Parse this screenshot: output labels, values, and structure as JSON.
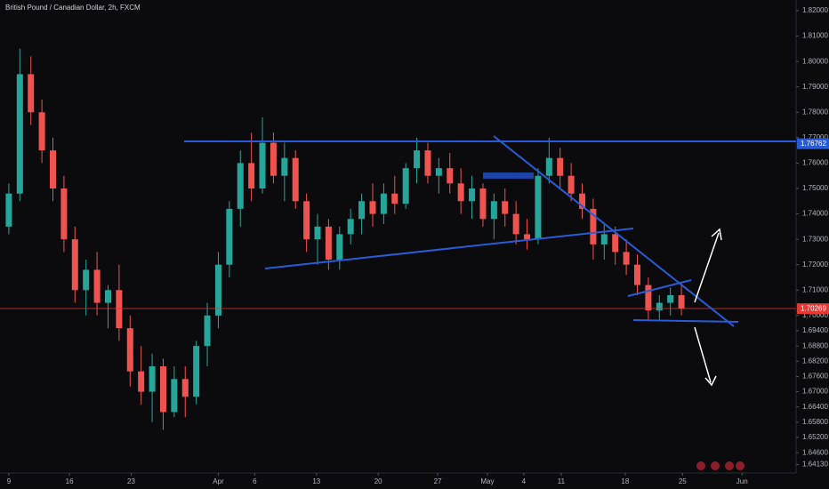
{
  "chart_data": {
    "type": "candlestick",
    "title": "British Pound / Canadian Dollar, 2h, FXCM",
    "up_color": "#26a69a",
    "down_color": "#ef5350",
    "xlim": [
      -0.8,
      71.4
    ],
    "xticks": [
      {
        "value": 0,
        "label": "9"
      },
      {
        "value": 5.5,
        "label": "16"
      },
      {
        "value": 11.1,
        "label": "23"
      },
      {
        "value": 19.0,
        "label": "Apr"
      },
      {
        "value": 22.3,
        "label": "6"
      },
      {
        "value": 27.9,
        "label": "13"
      },
      {
        "value": 33.5,
        "label": "20"
      },
      {
        "value": 38.9,
        "label": "27"
      },
      {
        "value": 43.4,
        "label": "May"
      },
      {
        "value": 46.7,
        "label": "4"
      },
      {
        "value": 50.1,
        "label": "11"
      },
      {
        "value": 55.9,
        "label": "18"
      },
      {
        "value": 61.1,
        "label": "25"
      },
      {
        "value": 66.5,
        "label": "Jun"
      }
    ],
    "ylim": [
      1.638,
      1.8242
    ],
    "yticks": [
      {
        "value": 1.82,
        "label": "1.82000"
      },
      {
        "value": 1.81,
        "label": "1.81000"
      },
      {
        "value": 1.8,
        "label": "1.80000"
      },
      {
        "value": 1.79,
        "label": "1.79000"
      },
      {
        "value": 1.78,
        "label": "1.78000"
      },
      {
        "value": 1.77,
        "label": "1.77000"
      },
      {
        "value": 1.76,
        "label": "1.76000"
      },
      {
        "value": 1.75,
        "label": "1.75000"
      },
      {
        "value": 1.74,
        "label": "1.74000"
      },
      {
        "value": 1.73,
        "label": "1.73000"
      },
      {
        "value": 1.72,
        "label": "1.72000"
      },
      {
        "value": 1.71,
        "label": "1.71000"
      },
      {
        "value": 1.7,
        "label": "1.70000"
      },
      {
        "value": 1.694,
        "label": "1.69400"
      },
      {
        "value": 1.688,
        "label": "1.68800"
      },
      {
        "value": 1.682,
        "label": "1.68200"
      },
      {
        "value": 1.676,
        "label": "1.67600"
      },
      {
        "value": 1.67,
        "label": "1.67000"
      },
      {
        "value": 1.664,
        "label": "1.66400"
      },
      {
        "value": 1.658,
        "label": "1.65800"
      },
      {
        "value": 1.652,
        "label": "1.65200"
      },
      {
        "value": 1.646,
        "label": "1.64600"
      },
      {
        "value": 1.6413,
        "label": "1.64130"
      }
    ],
    "price_labels": [
      {
        "value": 1.76762,
        "label": "1.76762",
        "color": "#2a5bd7"
      },
      {
        "value": 1.70269,
        "label": "1.70269",
        "color": "#e53935"
      }
    ],
    "open": [
      1.735,
      1.748,
      1.795,
      1.78,
      1.765,
      1.75,
      1.73,
      1.71,
      1.718,
      1.705,
      1.71,
      1.695,
      1.678,
      1.67,
      1.68,
      1.662,
      1.675,
      1.668,
      1.688,
      1.7,
      1.72,
      1.742,
      1.76,
      1.75,
      1.768,
      1.755,
      1.762,
      1.745,
      1.73,
      1.735,
      1.722,
      1.732,
      1.738,
      1.745,
      1.74,
      1.748,
      1.744,
      1.758,
      1.765,
      1.755,
      1.758,
      1.752,
      1.745,
      1.75,
      1.738,
      1.745,
      1.74,
      1.732,
      1.73,
      1.755,
      1.762,
      1.755,
      1.748,
      1.742,
      1.728,
      1.732,
      1.725,
      1.72,
      1.712,
      1.702,
      1.705,
      1.708
    ],
    "high": [
      1.752,
      1.805,
      1.802,
      1.785,
      1.77,
      1.755,
      1.735,
      1.722,
      1.725,
      1.712,
      1.72,
      1.7,
      1.688,
      1.685,
      1.683,
      1.68,
      1.68,
      1.69,
      1.705,
      1.725,
      1.745,
      1.765,
      1.772,
      1.778,
      1.772,
      1.768,
      1.765,
      1.748,
      1.74,
      1.738,
      1.735,
      1.742,
      1.748,
      1.752,
      1.752,
      1.755,
      1.76,
      1.77,
      1.768,
      1.762,
      1.764,
      1.758,
      1.755,
      1.752,
      1.748,
      1.75,
      1.745,
      1.738,
      1.758,
      1.77,
      1.766,
      1.76,
      1.752,
      1.746,
      1.736,
      1.735,
      1.73,
      1.724,
      1.715,
      1.708,
      1.711,
      1.712
    ],
    "low": [
      1.732,
      1.745,
      1.775,
      1.76,
      1.745,
      1.725,
      1.705,
      1.7,
      1.7,
      1.695,
      1.69,
      1.672,
      1.665,
      1.658,
      1.655,
      1.66,
      1.66,
      1.665,
      1.68,
      1.695,
      1.715,
      1.735,
      1.745,
      1.748,
      1.752,
      1.745,
      1.742,
      1.725,
      1.72,
      1.718,
      1.718,
      1.728,
      1.732,
      1.735,
      1.736,
      1.74,
      1.742,
      1.752,
      1.752,
      1.748,
      1.748,
      1.74,
      1.738,
      1.735,
      1.73,
      1.735,
      1.728,
      1.726,
      1.728,
      1.752,
      1.75,
      1.745,
      1.738,
      1.722,
      1.722,
      1.72,
      1.716,
      1.708,
      1.698,
      1.698,
      1.7,
      1.7
    ],
    "close": [
      1.748,
      1.795,
      1.78,
      1.765,
      1.75,
      1.73,
      1.71,
      1.718,
      1.705,
      1.71,
      1.695,
      1.678,
      1.67,
      1.68,
      1.662,
      1.675,
      1.668,
      1.688,
      1.7,
      1.72,
      1.742,
      1.76,
      1.75,
      1.768,
      1.755,
      1.762,
      1.745,
      1.73,
      1.735,
      1.722,
      1.732,
      1.738,
      1.745,
      1.74,
      1.748,
      1.744,
      1.758,
      1.765,
      1.755,
      1.758,
      1.752,
      1.745,
      1.75,
      1.738,
      1.745,
      1.74,
      1.732,
      1.73,
      1.755,
      1.762,
      1.755,
      1.748,
      1.742,
      1.728,
      1.732,
      1.725,
      1.72,
      1.712,
      1.702,
      1.705,
      1.708,
      1.70269
    ]
  }
}
